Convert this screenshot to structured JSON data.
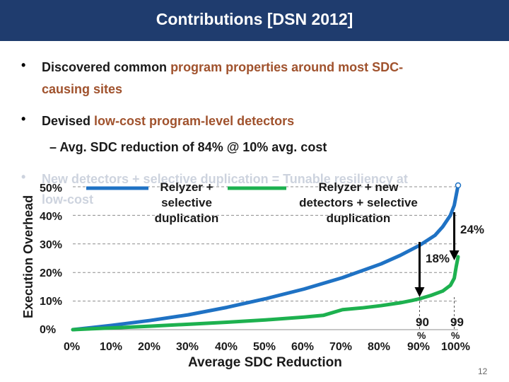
{
  "title": "Contributions [DSN 2012]",
  "bullets": {
    "b1_pre": "Discovered common ",
    "b1_hl": "program properties around most SDC-",
    "b1_line2": "causing sites",
    "b2_pre": "Devised ",
    "b2_hl": "low-cost program-level detectors",
    "sub1": "– Avg. SDC reduction of 84% @ 10% avg. cost",
    "b3_line1": "New detectors + selective duplication = Tunable resiliency at",
    "b3_line2": "low-cost"
  },
  "annotations": {
    "blue_label": [
      "Relyzer +",
      "selective",
      "duplication"
    ],
    "green_label": [
      "Relyzer + new",
      "detectors + selective",
      "duplication"
    ],
    "pct_24": "24%",
    "pct_18": "18%",
    "mark_90": "90",
    "mark_99": "99",
    "mark_pct_90": "%",
    "mark_pct_99": "%"
  },
  "slide_number": "12",
  "colors": {
    "title_bar": "#1f3c6e",
    "blue_series": "#1f72c4",
    "green_series": "#1db14f",
    "highlight": "#a0522d"
  },
  "chart_data": {
    "type": "line",
    "xlabel": "Average SDC Reduction",
    "ylabel": "Execution Overhead",
    "x_ticks": [
      "0%",
      "10%",
      "20%",
      "30%",
      "40%",
      "50%",
      "60%",
      "70%",
      "80%",
      "90%",
      "100%"
    ],
    "y_ticks": [
      "0%",
      "10%",
      "20%",
      "30%",
      "40%",
      "50%"
    ],
    "xlim": [
      0,
      100
    ],
    "ylim": [
      0,
      50
    ],
    "grid": "horizontal dashed",
    "series": [
      {
        "name": "Relyzer + selective duplication",
        "color": "#1f72c4",
        "x": [
          0,
          10,
          20,
          30,
          40,
          50,
          60,
          70,
          80,
          85,
          90,
          94,
          96,
          98,
          99,
          99.5,
          100
        ],
        "y": [
          0,
          1.5,
          3.2,
          5.2,
          7.8,
          10.8,
          14.2,
          18.2,
          23.0,
          26.0,
          29.5,
          33.0,
          36.0,
          40.0,
          43.5,
          47.0,
          50.5
        ]
      },
      {
        "name": "Relyzer + new detectors + selective duplication",
        "color": "#1db14f",
        "x": [
          0,
          10,
          20,
          30,
          40,
          50,
          60,
          65,
          70,
          75,
          80,
          85,
          88,
          90,
          93,
          96,
          98,
          99,
          99.5,
          100
        ],
        "y": [
          0,
          0.6,
          1.2,
          1.9,
          2.6,
          3.4,
          4.4,
          5.0,
          7.0,
          7.6,
          8.4,
          9.4,
          10.2,
          10.8,
          12.0,
          13.5,
          15.5,
          18.0,
          22.0,
          25.5
        ]
      }
    ],
    "markers": [
      {
        "label": "90",
        "x": 90,
        "value_label": "18%"
      },
      {
        "label": "99",
        "x": 99,
        "value_label": "24%"
      }
    ]
  }
}
